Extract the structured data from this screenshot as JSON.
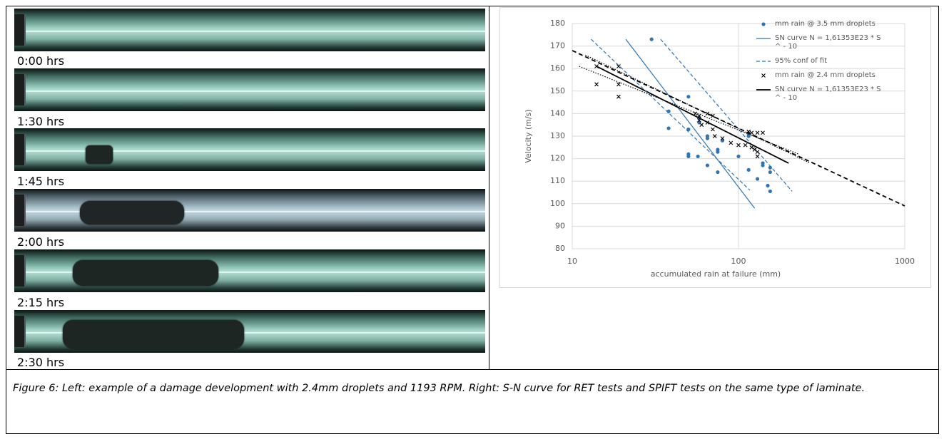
{
  "photos": [
    {
      "label": "0:00 hrs"
    },
    {
      "label": "1:30 hrs"
    },
    {
      "label": "1:45 hrs"
    },
    {
      "label": "2:00 hrs"
    },
    {
      "label": "2:15 hrs"
    },
    {
      "label": "2:30 hrs"
    }
  ],
  "chart_data": {
    "type": "scatter",
    "y_label": "Velocity (m/s)",
    "x_label": "accumulated rain at failure (mm)",
    "x_log": true,
    "grid": true,
    "xlim": [
      10,
      1000
    ],
    "xticks": [
      10,
      100,
      1000
    ],
    "ylim": [
      80,
      180
    ],
    "yticks": [
      80,
      90,
      100,
      110,
      120,
      130,
      140,
      150,
      160,
      170,
      180
    ],
    "series": [
      {
        "name": "mm rain @ 3.5 mm droplets",
        "color": "#2e75b6",
        "style": "dots",
        "x": [
          30,
          38,
          38,
          50,
          50,
          50,
          50,
          57,
          58,
          58,
          65,
          65,
          65,
          75,
          75,
          75,
          80,
          100,
          115,
          115,
          115,
          130,
          140,
          140,
          150,
          155,
          155,
          155
        ],
        "values": [
          173,
          141,
          133.5,
          147.5,
          133,
          122,
          121,
          121,
          138,
          136,
          130,
          129,
          117,
          124,
          123,
          114,
          128,
          121,
          131,
          130,
          115,
          111,
          118,
          117,
          108,
          116,
          114,
          105.5
        ]
      },
      {
        "name": "SN curve N = 1,61353E23 * S ^ - 10",
        "color": "#2e75b6",
        "style": "solid",
        "x": [
          21,
          125
        ],
        "values": [
          173,
          98
        ]
      },
      {
        "name": "95% conf of fit",
        "color": "#2e75b6",
        "style": "dashed",
        "x": [
          34,
          210
        ],
        "values": [
          173,
          105.5
        ]
      },
      {
        "name": "mm rain @ 2.4 mm droplets",
        "color": "#000000",
        "style": "crosses",
        "x": [
          14,
          14,
          19,
          19,
          19,
          55,
          58,
          58,
          60,
          65,
          65,
          70,
          70,
          72,
          80,
          90,
          100,
          110,
          115,
          120,
          130,
          140,
          125,
          130,
          120,
          130
        ],
        "values": [
          153,
          161,
          161,
          153,
          147.5,
          140,
          139,
          137,
          135,
          140,
          136,
          139,
          133,
          130,
          129,
          127,
          126,
          126,
          132,
          131.5,
          131.5,
          131.5,
          124,
          123,
          125,
          121
        ]
      },
      {
        "name": "SN curve N = 1,61353E23 * S ^ - 10",
        "color": "#000000",
        "style": "solid-thick",
        "x": [
          14,
          200
        ],
        "values": [
          161,
          118
        ]
      },
      {
        "color": "#2e75b6",
        "style": "dashed",
        "x": [
          13,
          117
        ],
        "values": [
          173,
          106
        ]
      },
      {
        "color": "#000000",
        "style": "dashed-thick",
        "x": [
          10,
          1000
        ],
        "values": [
          168,
          99
        ]
      },
      {
        "color": "#000000",
        "style": "dotted",
        "x": [
          12,
          270
        ],
        "values": [
          166,
          118
        ]
      },
      {
        "color": "#000000",
        "style": "dotted",
        "x": [
          11,
          230
        ],
        "values": [
          161,
          122
        ]
      }
    ]
  },
  "caption": "Figure 6: Left: example of a damage development with 2.4mm droplets and 1193 RPM. Right: S-N curve for RET tests and SPIFT tests on the same type of laminate."
}
